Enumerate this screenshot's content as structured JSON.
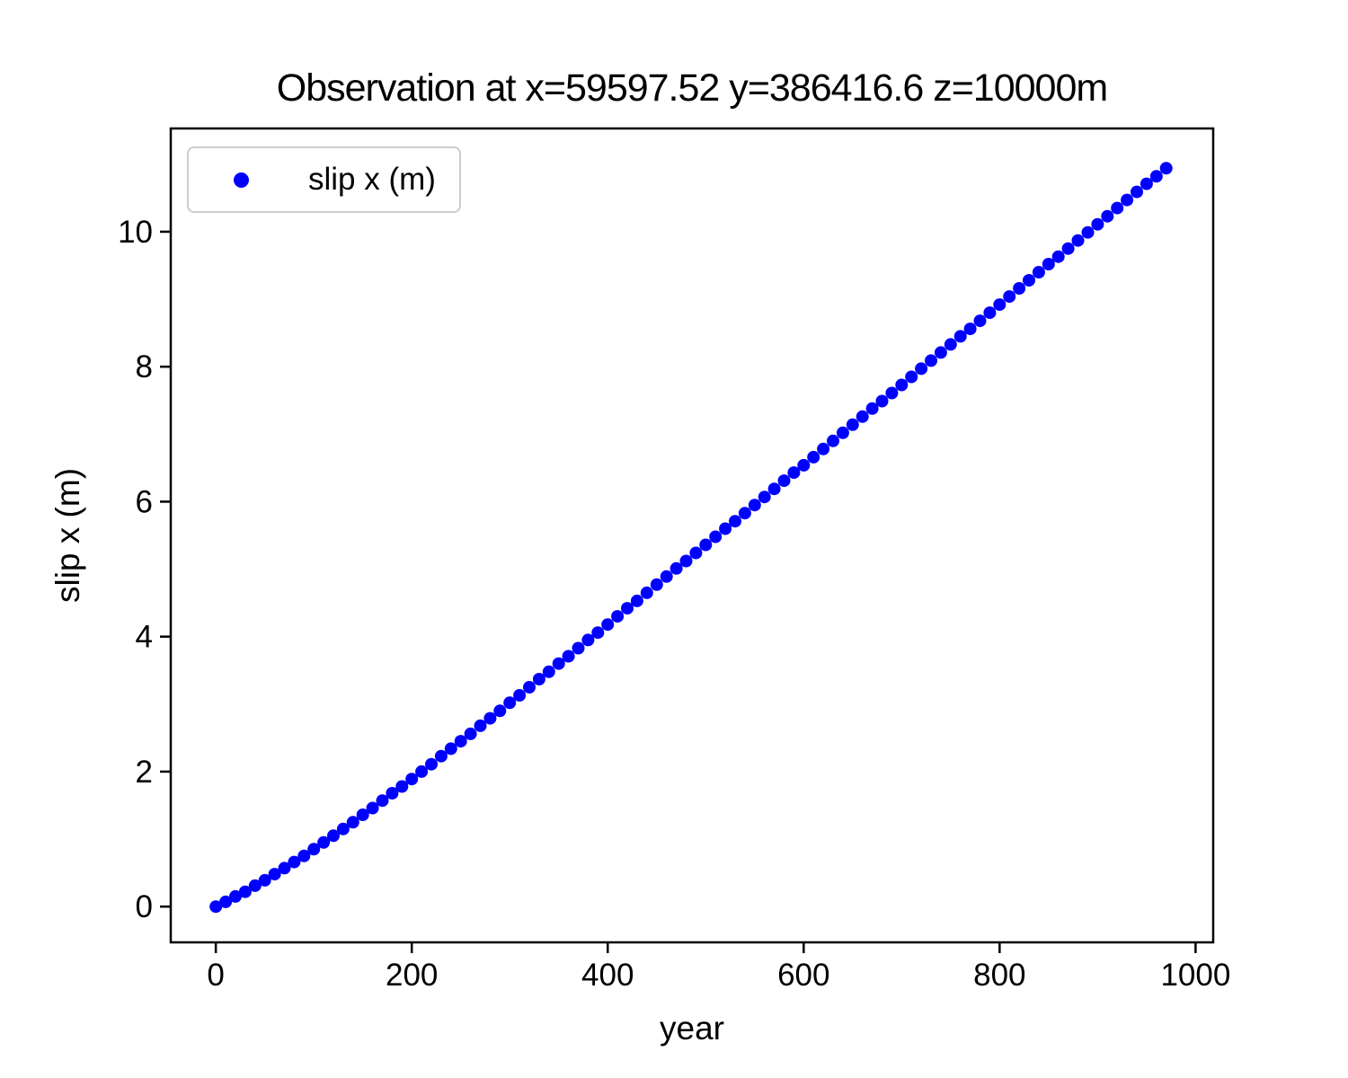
{
  "chart_data": {
    "type": "scatter",
    "title": "Observation at x=59597.52 y=386416.6 z=10000m",
    "xlabel": "year",
    "ylabel": "slip x (m)",
    "legend": {
      "position": "upper-left",
      "entries": [
        {
          "label": "slip x (m)",
          "marker": "circle",
          "marker_color": "#0000ff"
        }
      ]
    },
    "axes": {
      "xlim": [
        -46,
        1018
      ],
      "ylim": [
        -0.53,
        11.53
      ],
      "xticks": [
        0,
        200,
        400,
        600,
        800,
        1000
      ],
      "yticks": [
        0,
        2,
        4,
        6,
        8,
        10
      ],
      "grid": false,
      "frame_color": "#000000"
    },
    "series": [
      {
        "name": "slip x (m)",
        "color": "#0000ff",
        "marker": "circle",
        "x": [
          0,
          10,
          20,
          30,
          40,
          50,
          60,
          70,
          80,
          90,
          100,
          110,
          120,
          130,
          140,
          150,
          160,
          170,
          180,
          190,
          200,
          210,
          220,
          230,
          240,
          250,
          260,
          270,
          280,
          290,
          300,
          310,
          320,
          330,
          340,
          350,
          360,
          370,
          380,
          390,
          400,
          410,
          420,
          430,
          440,
          450,
          460,
          470,
          480,
          490,
          500,
          510,
          520,
          530,
          540,
          550,
          560,
          570,
          580,
          590,
          600,
          610,
          620,
          630,
          640,
          650,
          660,
          670,
          680,
          690,
          700,
          710,
          720,
          730,
          740,
          750,
          760,
          770,
          780,
          790,
          800,
          810,
          820,
          830,
          840,
          850,
          860,
          870,
          880,
          890,
          900,
          910,
          920,
          930,
          940,
          950,
          960,
          970
        ],
        "y": [
          0.0,
          0.07,
          0.15,
          0.22,
          0.31,
          0.39,
          0.48,
          0.57,
          0.66,
          0.75,
          0.85,
          0.95,
          1.05,
          1.15,
          1.25,
          1.36,
          1.46,
          1.57,
          1.68,
          1.78,
          1.89,
          2.0,
          2.11,
          2.23,
          2.34,
          2.45,
          2.56,
          2.68,
          2.79,
          2.9,
          3.02,
          3.13,
          3.25,
          3.37,
          3.48,
          3.6,
          3.71,
          3.83,
          3.95,
          4.06,
          4.18,
          4.3,
          4.42,
          4.53,
          4.65,
          4.77,
          4.89,
          5.01,
          5.12,
          5.24,
          5.36,
          5.48,
          5.6,
          5.71,
          5.83,
          5.95,
          6.07,
          6.19,
          6.31,
          6.43,
          6.54,
          6.66,
          6.78,
          6.9,
          7.02,
          7.14,
          7.26,
          7.38,
          7.49,
          7.61,
          7.73,
          7.85,
          7.97,
          8.09,
          8.21,
          8.33,
          8.45,
          8.56,
          8.68,
          8.8,
          8.92,
          9.04,
          9.16,
          9.28,
          9.4,
          9.52,
          9.63,
          9.75,
          9.87,
          9.99,
          10.11,
          10.23,
          10.35,
          10.47,
          10.59,
          10.71,
          10.82,
          10.94
        ]
      }
    ]
  }
}
